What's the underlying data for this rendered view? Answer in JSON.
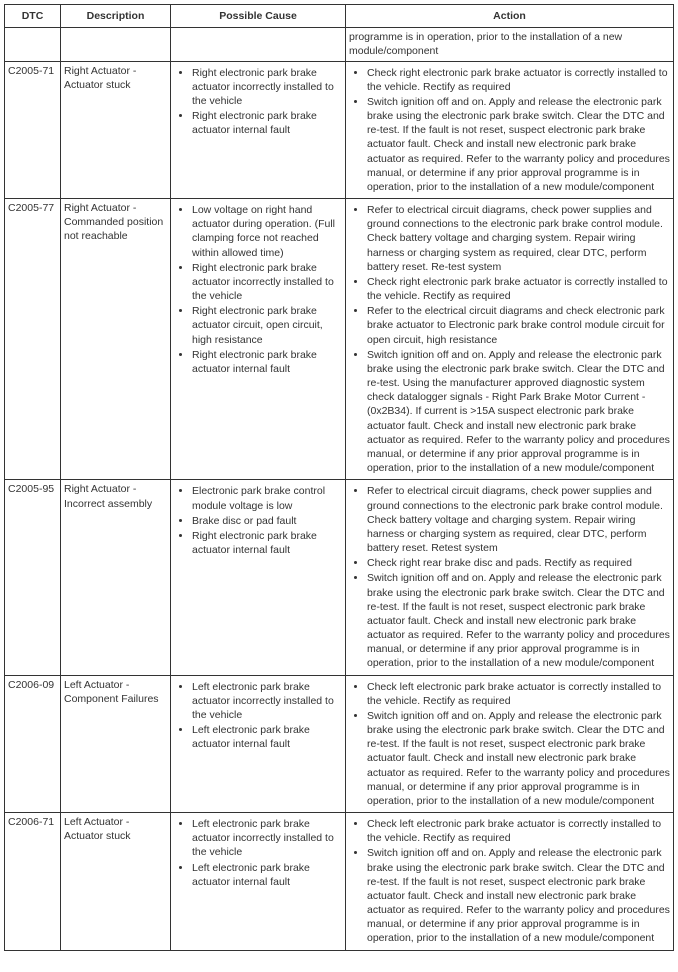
{
  "columns": [
    "DTC",
    "Description",
    "Possible Cause",
    "Action"
  ],
  "frag_action": "programme is in operation, prior to the installation of a new module/component",
  "rows": [
    {
      "dtc": "C2005-71",
      "desc": "Right Actuator - Actuator stuck",
      "causes": [
        "Right electronic park brake actuator incorrectly installed to the vehicle",
        "Right electronic park brake actuator internal fault"
      ],
      "actions": [
        "Check right electronic park brake actuator is correctly installed to the vehicle. Rectify as required",
        "Switch ignition off and on. Apply and release the electronic park brake using the electronic park brake switch. Clear the DTC and re-test. If the fault is not reset, suspect electronic park brake actuator fault. Check and install new electronic park brake actuator as required. Refer to the warranty policy and procedures manual, or determine if any prior approval programme is in operation, prior to the installation of a new module/component"
      ]
    },
    {
      "dtc": "C2005-77",
      "desc": "Right Actuator - Commanded position not reachable",
      "causes": [
        "Low voltage on right hand actuator during operation. (Full clamping force not reached within allowed time)",
        "Right electronic park brake actuator incorrectly installed to the vehicle",
        "Right electronic park brake actuator circuit, open circuit, high resistance",
        "Right electronic park brake actuator internal fault"
      ],
      "actions": [
        "Refer to electrical circuit diagrams, check power supplies and ground connections to the electronic park brake control module. Check battery voltage and charging system. Repair wiring harness or charging system as required, clear DTC, perform battery reset. Re-test system",
        "Check right electronic park brake actuator is correctly installed to the vehicle. Rectify as required",
        "Refer to the electrical circuit diagrams and check electronic park brake actuator to Electronic park brake control module circuit for open circuit, high resistance",
        "Switch ignition off and on. Apply and release the electronic park brake using the electronic park brake switch. Clear the DTC and re-test. Using the manufacturer approved diagnostic system check datalogger signals - Right Park Brake Motor Current - (0x2B34). If current is >15A suspect electronic park brake actuator fault. Check and install new electronic park brake actuator as required. Refer to the warranty policy and procedures manual, or determine if any prior approval programme is in operation, prior to the installation of a new module/component"
      ]
    },
    {
      "dtc": "C2005-95",
      "desc": "Right Actuator - Incorrect assembly",
      "causes": [
        "Electronic park brake control module voltage is low",
        "Brake disc or pad fault",
        "Right electronic park brake actuator internal fault"
      ],
      "actions": [
        "Refer to electrical circuit diagrams, check power supplies and ground connections to the electronic park brake control module. Check battery voltage and charging system. Repair wiring harness or charging system as required, clear DTC, perform battery reset. Retest system",
        "Check right rear brake disc and pads. Rectify as required",
        "Switch ignition off and on. Apply and release the electronic park brake using the electronic park brake switch. Clear the DTC and re-test. If the fault is not reset, suspect electronic park brake actuator fault. Check and install new electronic park brake actuator as required. Refer to the warranty policy and procedures manual, or determine if any prior approval programme is in operation, prior to the installation of a new module/component"
      ]
    },
    {
      "dtc": "C2006-09",
      "desc": "Left Actuator - Component Failures",
      "causes": [
        "Left electronic park brake actuator incorrectly installed to the vehicle",
        "Left electronic park brake actuator internal fault"
      ],
      "actions": [
        "Check left electronic park brake actuator is correctly installed to the vehicle. Rectify as required",
        "Switch ignition off and on. Apply and release the electronic park brake using the electronic park brake switch. Clear the DTC and re-test. If the fault is not reset, suspect electronic park brake actuator fault. Check and install new electronic park brake actuator as required. Refer to the warranty policy and procedures manual, or determine if any prior approval programme is in operation, prior to the installation of a new module/component"
      ]
    },
    {
      "dtc": "C2006-71",
      "desc": "Left Actuator - Actuator stuck",
      "causes": [
        "Left electronic park brake actuator incorrectly installed to the vehicle",
        "Left electronic park brake actuator internal fault"
      ],
      "actions": [
        "Check left electronic park brake actuator is correctly installed to the vehicle. Rectify as required",
        "Switch ignition off and on. Apply and release the electronic park brake using the electronic park brake switch. Clear the DTC and re-test. If the fault is not reset, suspect electronic park brake actuator fault. Check and install new electronic park brake actuator as required. Refer to the warranty policy and procedures manual, or determine if any prior approval programme is in operation, prior to the installation of a new module/component"
      ]
    }
  ]
}
